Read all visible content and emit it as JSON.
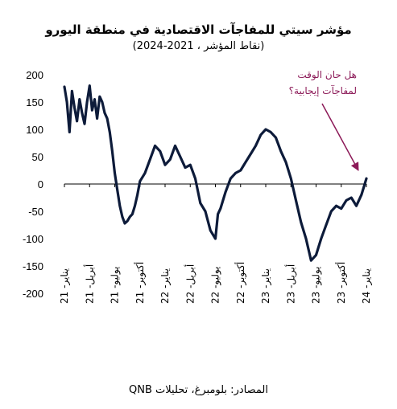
{
  "chart_data": {
    "type": "line",
    "title": "مؤشر سيتي للمفاجآت الاقتصادية في منطقة اليورو",
    "subtitle": "(نقاط المؤشر ، 2021-2024)",
    "source": "المصادر: بلومبرغ، تحليلات QNB",
    "ylim": [
      -200,
      200
    ],
    "yticks": [
      200,
      150,
      100,
      50,
      0,
      -50,
      -100,
      -150,
      -200
    ],
    "xticks": [
      "يناير- 21",
      "أبريل- 21",
      "يوليو- 21",
      "أكتوبر- 21",
      "يناير- 22",
      "أبريل- 22",
      "يوليو- 22",
      "أكتوبر- 22",
      "يناير- 23",
      "أبريل- 23",
      "يوليو- 23",
      "أكتوبر- 23",
      "يناير- 24"
    ],
    "annotation": {
      "lines": [
        "هل حان الوقت",
        "لمفاجآت إيجابية؟"
      ],
      "color": "#8c1a58"
    },
    "grid": false,
    "line_color": "#0d1b3a",
    "series": [
      {
        "x": [
          0,
          0.1,
          0.2,
          0.3,
          0.4,
          0.5,
          0.6,
          0.7,
          0.8,
          0.9,
          1.0,
          1.1,
          1.2,
          1.3,
          1.4,
          1.5,
          1.6,
          1.7,
          1.8,
          1.9,
          2.0,
          2.1,
          2.2,
          2.3,
          2.4,
          2.5,
          2.6,
          2.7,
          2.8,
          2.9,
          3.0,
          3.2,
          3.4,
          3.6,
          3.8,
          4.0,
          4.2,
          4.4,
          4.6,
          4.8,
          5.0,
          5.2,
          5.4,
          5.6,
          5.8,
          6.0,
          6.1,
          6.2,
          6.3,
          6.4,
          6.6,
          6.8,
          7.0,
          7.2,
          7.4,
          7.6,
          7.8,
          8.0,
          8.2,
          8.4,
          8.6,
          8.8,
          9.0,
          9.2,
          9.4,
          9.6,
          9.8,
          10.0,
          10.2,
          10.4,
          10.6,
          10.8,
          11.0,
          11.2,
          11.4,
          11.6,
          11.8,
          12.0
        ],
        "values": [
          178,
          150,
          95,
          170,
          140,
          115,
          155,
          130,
          110,
          150,
          180,
          135,
          155,
          120,
          160,
          150,
          130,
          120,
          95,
          60,
          20,
          -10,
          -40,
          -60,
          -72,
          -68,
          -60,
          -55,
          -40,
          -20,
          5,
          20,
          45,
          70,
          60,
          35,
          45,
          70,
          50,
          30,
          35,
          10,
          -35,
          -50,
          -85,
          -100,
          -55,
          -45,
          -30,
          -15,
          10,
          20,
          25,
          40,
          55,
          70,
          90,
          100,
          95,
          85,
          60,
          40,
          10,
          -30,
          -70,
          -100,
          -140,
          -130,
          -100,
          -75,
          -50,
          -40,
          -45,
          -30,
          -25,
          -40,
          -20,
          10
        ]
      }
    ]
  }
}
